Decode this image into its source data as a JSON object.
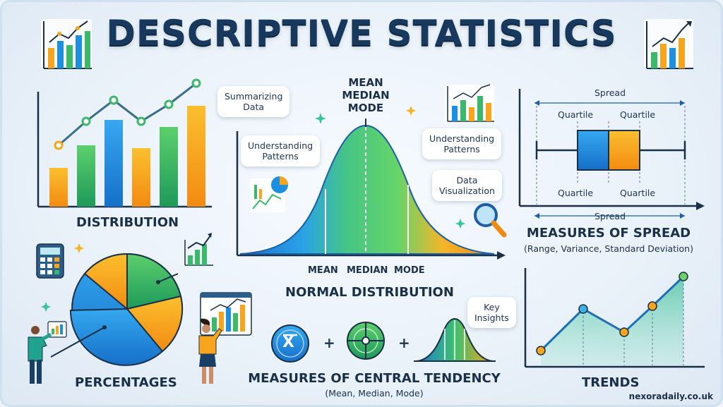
{
  "title": "DESCRIPTIVE STATISTICS",
  "panels": {
    "distribution": {
      "label": "DISTRIBUTION"
    },
    "normal": {
      "top_labels": [
        "MEAN",
        "MEDIAN",
        "MODE"
      ],
      "bottom_labels": [
        "MEAN",
        "MEDIAN",
        "MODE"
      ],
      "label": "NORMAL DISTRIBUTION"
    },
    "spread": {
      "top_label": "Spread",
      "bottom_label": "Spread",
      "quartiles": [
        "Quartile",
        "Quartile",
        "Quartile",
        "Quartile"
      ],
      "label": "MEASURES OF SPREAD",
      "sublabel": "(Range, Variance, Standard Deviation)"
    },
    "percentages": {
      "label": "PERCENTAGES"
    },
    "central": {
      "label": "MEASURES OF CENTRAL TENDENCY",
      "sublabel": "(Mean, Median, Mode)",
      "plus": "+",
      "mean_symbol": "X"
    },
    "trends": {
      "label": "TRENDS"
    }
  },
  "bubbles": {
    "summarizing": [
      "Summarizing",
      "Data"
    ],
    "patterns_left": [
      "Understanding",
      "Patterns"
    ],
    "patterns_right": [
      "Understanding",
      "Patterns"
    ],
    "visualization": [
      "Data",
      "Visualization"
    ],
    "insights": [
      "Key",
      "Insights"
    ]
  },
  "footer": "nexoradaily.co.uk",
  "colors": {
    "navy": "#17395e",
    "green": "#3cb86b",
    "blue": "#1d8fe0",
    "orange": "#f6a51c",
    "teal": "#26b5a6"
  },
  "icons": [
    "bar-chart-icon",
    "calculator-icon",
    "magnifier-icon",
    "sparkle-icon",
    "presenter-icon"
  ]
}
